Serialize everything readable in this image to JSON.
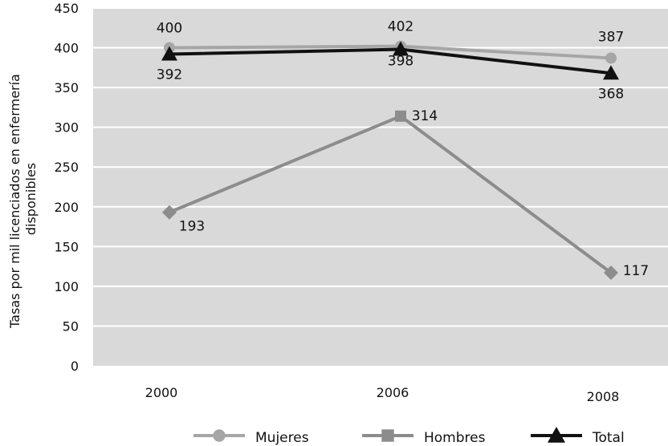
{
  "chart_data": {
    "type": "line",
    "categories": [
      "2000",
      "2006",
      "2008"
    ],
    "ylabel_lines": [
      "Tasas por mil licenciados en enfermería",
      "disponibles"
    ],
    "ylim": [
      0,
      450
    ],
    "yticks": [
      0,
      50,
      100,
      150,
      200,
      250,
      300,
      350,
      400,
      450
    ],
    "grid": true,
    "legend_position": "bottom",
    "series": [
      {
        "name": "Mujeres",
        "values": [
          400,
          402,
          387
        ],
        "color": "#a6a6a6",
        "marker": "circle"
      },
      {
        "name": "Hombres",
        "values": [
          193,
          314,
          117
        ],
        "color": "#8c8c8c",
        "marker": "square"
      },
      {
        "name": "Total",
        "values": [
          392,
          398,
          368
        ],
        "color": "#111111",
        "marker": "triangle"
      }
    ],
    "data_labels": [
      [
        "400",
        "402",
        "387"
      ],
      [
        "193",
        "314",
        "117"
      ],
      [
        "392",
        "398",
        "368"
      ]
    ],
    "plot_background": "#d9d9d9",
    "grid_color": "#ffffff"
  }
}
